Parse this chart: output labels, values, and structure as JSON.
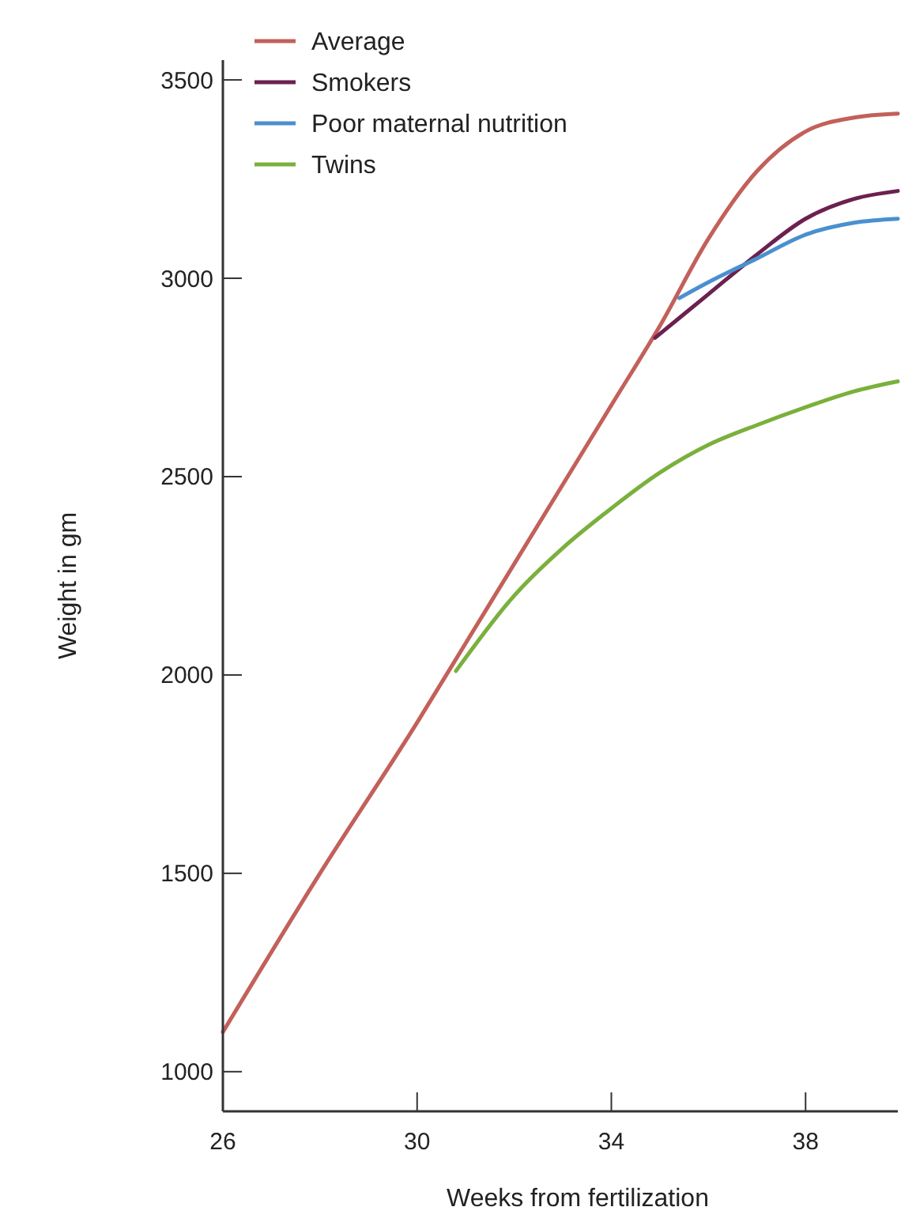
{
  "chart_data": {
    "type": "line",
    "xlabel": "Weeks from fertilization",
    "ylabel": "Weight in gm",
    "xlim": [
      26,
      39.9
    ],
    "ylim": [
      900,
      3550
    ],
    "xticks": [
      26,
      30,
      34,
      38
    ],
    "yticks": [
      1000,
      1500,
      2000,
      2500,
      3000,
      3500
    ],
    "grid": false,
    "legend": "top left",
    "marker": "none",
    "line_style": "solid",
    "series": [
      {
        "name": "Average",
        "color": "#c2605a",
        "x": [
          26,
          28,
          30,
          31,
          32,
          33,
          34,
          35,
          36,
          37,
          38,
          39,
          39.9
        ],
        "values": [
          1100,
          1500,
          1880,
          2080,
          2280,
          2480,
          2680,
          2880,
          3100,
          3270,
          3370,
          3405,
          3415
        ]
      },
      {
        "name": "Smokers",
        "color": "#6b2150",
        "x": [
          34.9,
          36,
          37,
          38,
          39,
          39.9
        ],
        "values": [
          2850,
          2960,
          3060,
          3150,
          3200,
          3220
        ]
      },
      {
        "name": "Poor maternal nutrition",
        "color": "#4a90d0",
        "x": [
          35.4,
          36,
          37,
          38,
          39,
          39.9
        ],
        "values": [
          2950,
          2990,
          3050,
          3110,
          3140,
          3150
        ]
      },
      {
        "name": "Twins",
        "color": "#7ab03c",
        "x": [
          30.8,
          32,
          33,
          34,
          35,
          36,
          37,
          38,
          39,
          39.9
        ],
        "values": [
          2010,
          2200,
          2320,
          2420,
          2510,
          2580,
          2630,
          2675,
          2715,
          2740
        ]
      }
    ]
  }
}
